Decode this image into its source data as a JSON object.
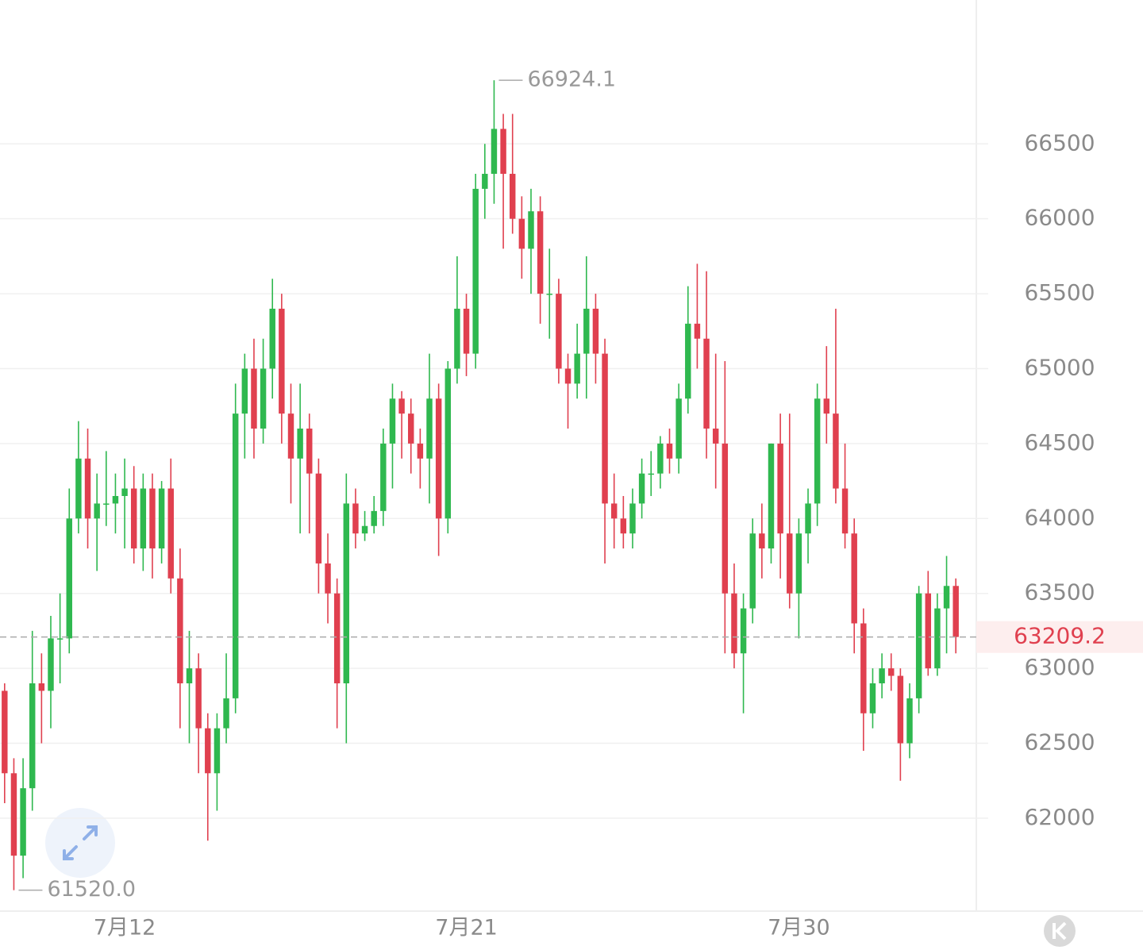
{
  "chart_data": {
    "type": "candlestick",
    "up_color": "#2fb84f",
    "down_color": "#e0404f",
    "ylim": [
      61380,
      67460
    ],
    "yticks": [
      62000,
      62500,
      63000,
      63500,
      64000,
      64500,
      65000,
      65500,
      66000,
      66500
    ],
    "grid": true,
    "high_label": 66924.1,
    "low_label": {
      "value": 61520,
      "label": "61520.0"
    },
    "last_price": 63209.2,
    "categories": [
      null,
      null,
      null,
      null,
      null,
      null,
      null,
      null,
      null,
      null,
      null,
      null,
      null,
      "7月12",
      null,
      null,
      null,
      null,
      null,
      null,
      null,
      null,
      null,
      null,
      null,
      null,
      null,
      null,
      null,
      null,
      null,
      null,
      null,
      null,
      null,
      null,
      null,
      null,
      null,
      null,
      null,
      null,
      null,
      null,
      null,
      null,
      null,
      null,
      null,
      null,
      "7月21",
      null,
      null,
      null,
      null,
      null,
      null,
      null,
      null,
      null,
      null,
      null,
      null,
      null,
      null,
      null,
      null,
      null,
      null,
      null,
      null,
      null,
      null,
      null,
      null,
      null,
      null,
      null,
      null,
      null,
      null,
      null,
      null,
      null,
      null,
      null,
      "7月30",
      null,
      null,
      null,
      null,
      null,
      null,
      null,
      null,
      null,
      null,
      null,
      null,
      null,
      null,
      null,
      null,
      null
    ],
    "candles": [
      [
        62850,
        62900,
        62100,
        62300
      ],
      [
        62300,
        62400,
        61520,
        61750
      ],
      [
        61750,
        62400,
        61600,
        62200
      ],
      [
        62200,
        63250,
        62050,
        62900
      ],
      [
        62900,
        63100,
        62500,
        62850
      ],
      [
        62850,
        63350,
        62600,
        63200
      ],
      [
        63200,
        63500,
        62900,
        63200
      ],
      [
        63200,
        64200,
        63100,
        64000
      ],
      [
        64000,
        64650,
        63900,
        64400
      ],
      [
        64400,
        64600,
        63800,
        64000
      ],
      [
        64000,
        64300,
        63650,
        64100
      ],
      [
        64100,
        64450,
        63950,
        64100
      ],
      [
        64100,
        64300,
        63900,
        64150
      ],
      [
        64150,
        64400,
        63800,
        64200
      ],
      [
        64200,
        64350,
        63700,
        63800
      ],
      [
        63800,
        64300,
        63650,
        64200
      ],
      [
        64200,
        64300,
        63600,
        63800
      ],
      [
        63800,
        64250,
        63700,
        64200
      ],
      [
        64200,
        64400,
        63500,
        63600
      ],
      [
        63600,
        63800,
        62600,
        62900
      ],
      [
        62900,
        63250,
        62500,
        63000
      ],
      [
        63000,
        63100,
        62300,
        62600
      ],
      [
        62600,
        62700,
        61850,
        62300
      ],
      [
        62300,
        62700,
        62050,
        62600
      ],
      [
        62600,
        63100,
        62500,
        62800
      ],
      [
        62800,
        64900,
        62700,
        64700
      ],
      [
        64700,
        65100,
        64400,
        65000
      ],
      [
        65000,
        65200,
        64400,
        64600
      ],
      [
        64600,
        65200,
        64500,
        65000
      ],
      [
        65000,
        65600,
        64800,
        65400
      ],
      [
        65400,
        65500,
        64500,
        64700
      ],
      [
        64700,
        64900,
        64100,
        64400
      ],
      [
        64400,
        64900,
        63900,
        64600
      ],
      [
        64600,
        64700,
        63900,
        64300
      ],
      [
        64300,
        64400,
        63500,
        63700
      ],
      [
        63700,
        63900,
        63300,
        63500
      ],
      [
        63500,
        63600,
        62600,
        62900
      ],
      [
        62900,
        64300,
        62500,
        64100
      ],
      [
        64100,
        64200,
        63800,
        63900
      ],
      [
        63900,
        64050,
        63850,
        63950
      ],
      [
        63950,
        64150,
        63900,
        64050
      ],
      [
        64050,
        64600,
        63950,
        64500
      ],
      [
        64500,
        64900,
        64200,
        64800
      ],
      [
        64800,
        64850,
        64400,
        64700
      ],
      [
        64700,
        64800,
        64300,
        64500
      ],
      [
        64500,
        64600,
        64200,
        64400
      ],
      [
        64400,
        65100,
        64100,
        64800
      ],
      [
        64800,
        64900,
        63750,
        64000
      ],
      [
        64000,
        65050,
        63900,
        65000
      ],
      [
        65000,
        65750,
        64900,
        65400
      ],
      [
        65400,
        65500,
        64950,
        65100
      ],
      [
        65100,
        66300,
        65000,
        66200
      ],
      [
        66200,
        66500,
        66000,
        66300
      ],
      [
        66300,
        66924.1,
        66100,
        66600
      ],
      [
        66600,
        66700,
        65800,
        66300
      ],
      [
        66300,
        66700,
        65900,
        66000
      ],
      [
        66000,
        66150,
        65600,
        65800
      ],
      [
        65800,
        66200,
        65500,
        66050
      ],
      [
        66050,
        66150,
        65300,
        65500
      ],
      [
        65500,
        65800,
        65200,
        65500
      ],
      [
        65500,
        65600,
        64900,
        65000
      ],
      [
        65000,
        65100,
        64600,
        64900
      ],
      [
        64900,
        65300,
        64800,
        65100
      ],
      [
        65100,
        65750,
        64800,
        65400
      ],
      [
        65400,
        65500,
        64900,
        65100
      ],
      [
        65100,
        65200,
        63700,
        64100
      ],
      [
        64100,
        64300,
        63800,
        64000
      ],
      [
        64000,
        64150,
        63800,
        63900
      ],
      [
        63900,
        64200,
        63800,
        64100
      ],
      [
        64100,
        64400,
        64000,
        64300
      ],
      [
        64300,
        64450,
        64150,
        64300
      ],
      [
        64300,
        64550,
        64200,
        64500
      ],
      [
        64500,
        64600,
        64300,
        64400
      ],
      [
        64400,
        64900,
        64300,
        64800
      ],
      [
        64800,
        65550,
        64700,
        65300
      ],
      [
        65300,
        65700,
        65000,
        65200
      ],
      [
        65200,
        65650,
        64400,
        64600
      ],
      [
        64600,
        65100,
        64200,
        64500
      ],
      [
        64500,
        65050,
        63100,
        63500
      ],
      [
        63500,
        63700,
        63000,
        63100
      ],
      [
        63100,
        63500,
        62700,
        63400
      ],
      [
        63400,
        64000,
        63300,
        63900
      ],
      [
        63900,
        64100,
        63600,
        63800
      ],
      [
        63800,
        64500,
        63700,
        64500
      ],
      [
        64500,
        64700,
        63600,
        63900
      ],
      [
        63900,
        64700,
        63400,
        63500
      ],
      [
        63500,
        64000,
        63200,
        63900
      ],
      [
        63900,
        64200,
        63700,
        64100
      ],
      [
        64100,
        64900,
        63950,
        64800
      ],
      [
        64800,
        65150,
        64500,
        64700
      ],
      [
        64700,
        65400,
        64100,
        64200
      ],
      [
        64200,
        64500,
        63800,
        63900
      ],
      [
        63900,
        64000,
        63100,
        63300
      ],
      [
        63300,
        63400,
        62450,
        62700
      ],
      [
        62700,
        63000,
        62600,
        62900
      ],
      [
        62900,
        63100,
        62800,
        63000
      ],
      [
        63000,
        63100,
        62850,
        62950
      ],
      [
        62950,
        63000,
        62250,
        62500
      ],
      [
        62500,
        62900,
        62400,
        62800
      ],
      [
        62800,
        63550,
        62700,
        63500
      ],
      [
        63500,
        63650,
        62950,
        63000
      ],
      [
        63000,
        63500,
        62950,
        63400
      ],
      [
        63400,
        63750,
        63100,
        63550
      ],
      [
        63550,
        63600,
        63100,
        63209.2
      ]
    ]
  }
}
